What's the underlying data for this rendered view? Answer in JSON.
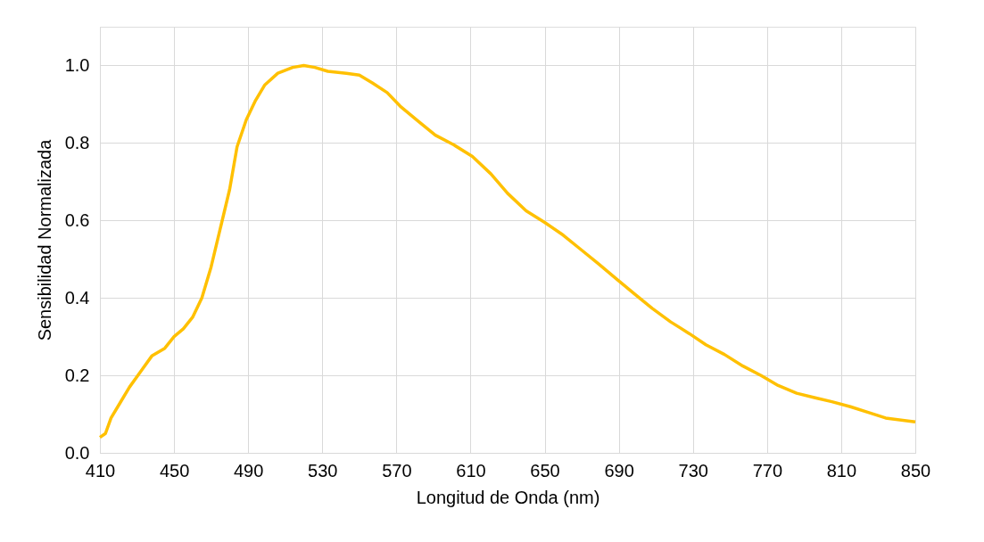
{
  "chart_data": {
    "type": "line",
    "xlabel": "Longitud de Onda (nm)",
    "ylabel": "Sensibilidad Normalizada",
    "xlim": [
      410,
      850
    ],
    "xticks": [
      410,
      450,
      490,
      530,
      570,
      610,
      650,
      690,
      730,
      770,
      810,
      850
    ],
    "ylim": [
      0,
      1.1
    ],
    "yticks": [
      {
        "value": 0,
        "label": "0.0"
      },
      0.2,
      0.4,
      0.6,
      0.8,
      {
        "value": 1,
        "label": "1.0"
      }
    ],
    "grid": true,
    "marker": "none",
    "line_style": "solid",
    "series": [
      {
        "color": "#ffc000",
        "x": [
          410,
          413,
          416,
          421,
          426,
          432,
          438,
          445,
          450,
          455,
          460,
          465,
          470,
          475,
          480,
          484,
          489,
          494,
          499,
          506,
          514,
          520,
          526,
          533,
          543,
          550,
          557,
          565,
          572,
          582,
          591,
          601,
          611,
          621,
          630,
          640,
          650,
          660,
          669,
          679,
          689,
          699,
          708,
          718,
          728,
          737,
          747,
          757,
          767,
          776,
          786,
          796,
          805,
          815,
          825,
          834,
          850
        ],
        "values": [
          0.04,
          0.05,
          0.09,
          0.13,
          0.17,
          0.21,
          0.25,
          0.27,
          0.3,
          0.32,
          0.35,
          0.4,
          0.48,
          0.58,
          0.68,
          0.79,
          0.86,
          0.91,
          0.95,
          0.98,
          0.995,
          1.0,
          0.995,
          0.985,
          0.98,
          0.975,
          0.955,
          0.93,
          0.895,
          0.855,
          0.82,
          0.795,
          0.765,
          0.72,
          0.67,
          0.625,
          0.595,
          0.562,
          0.527,
          0.488,
          0.448,
          0.408,
          0.373,
          0.338,
          0.308,
          0.279,
          0.254,
          0.224,
          0.199,
          0.174,
          0.154,
          0.142,
          0.132,
          0.119,
          0.104,
          0.09,
          0.08
        ]
      }
    ]
  }
}
